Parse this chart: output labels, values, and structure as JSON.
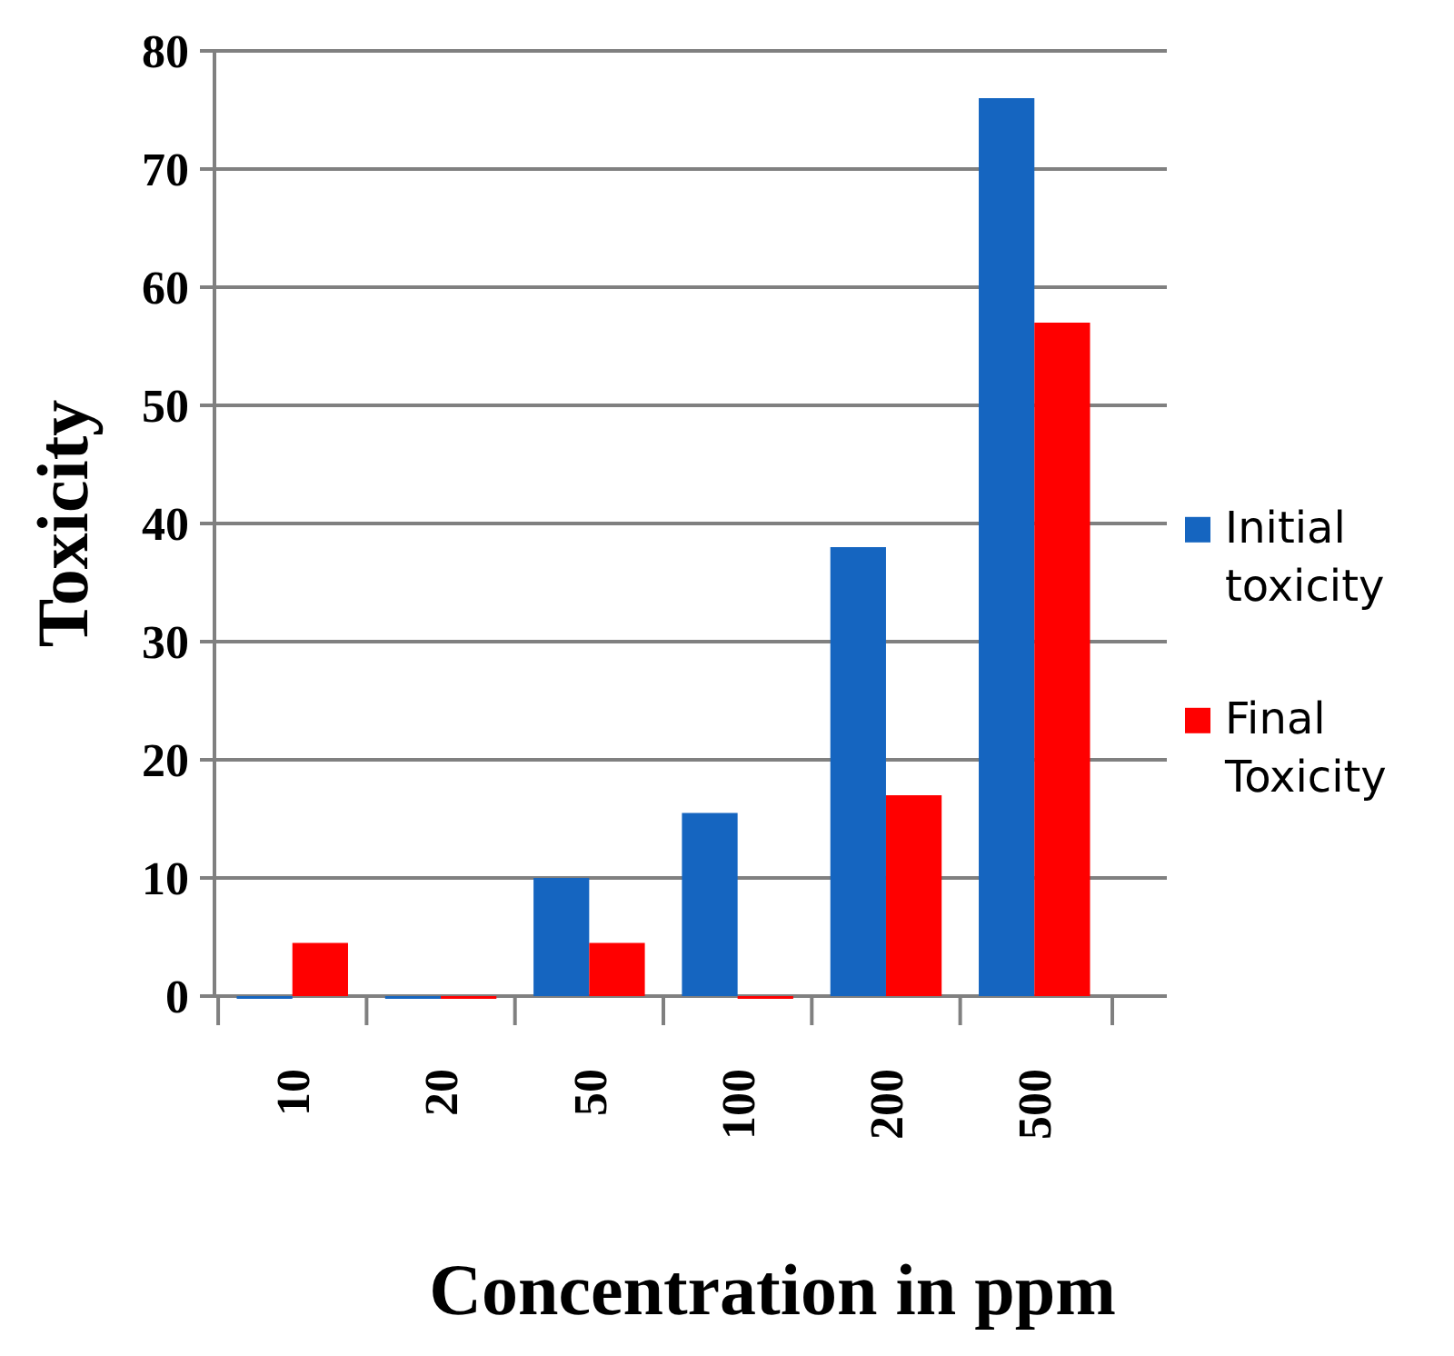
{
  "chart_data": {
    "type": "bar",
    "xlabel": "Concentration in ppm",
    "ylabel": "Toxicity",
    "categories": [
      "10",
      "20",
      "50",
      "100",
      "200",
      "500"
    ],
    "series": [
      {
        "name": "Initial toxicity",
        "color": "#1565c0",
        "values": [
          0,
          0,
          10,
          15.5,
          38,
          76
        ]
      },
      {
        "name": "Final Toxicity",
        "color": "#ff0000",
        "values": [
          4.5,
          0,
          4.5,
          0,
          17,
          57
        ]
      }
    ],
    "ylim": [
      0,
      80
    ],
    "yticks": [
      0,
      10,
      20,
      30,
      40,
      50,
      60,
      70,
      80
    ],
    "grid": "y",
    "legend": "right"
  }
}
